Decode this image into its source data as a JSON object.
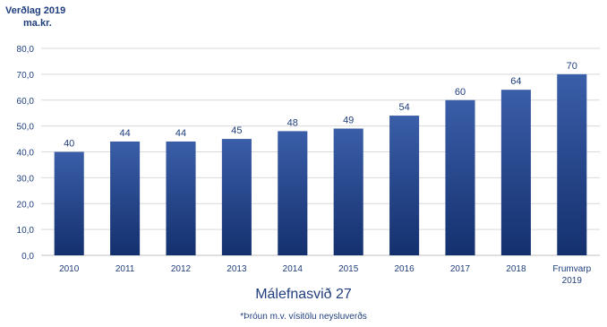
{
  "unit": {
    "line1": "Verðlag 2019",
    "line2": "ma.kr."
  },
  "footnote": "*Þróun m.v. vísitölu neysluverðs",
  "chart_data": {
    "type": "bar",
    "title": "Málefnasvið 27",
    "categories": [
      "2010",
      "2011",
      "2012",
      "2013",
      "2014",
      "2015",
      "2016",
      "2017",
      "2018",
      "Frumvarp 2019"
    ],
    "values": [
      40,
      44,
      44,
      45,
      48,
      49,
      54,
      60,
      64,
      70
    ],
    "data_labels": [
      "40",
      "44",
      "44",
      "45",
      "48",
      "49",
      "54",
      "60",
      "64",
      "70"
    ],
    "ylim": [
      0,
      80
    ],
    "yticks": [
      0,
      10,
      20,
      30,
      40,
      50,
      60,
      70,
      80
    ],
    "ytick_labels": [
      "0,0",
      "10,0",
      "20,0",
      "30,0",
      "40,0",
      "50,0",
      "60,0",
      "70,0",
      "80,0"
    ],
    "grid": true,
    "legend": "none",
    "colors": {
      "bar_top": "#3a5ea8",
      "bar_bottom": "#14306e",
      "text": "#1f3e7c",
      "grid": "#d9d9d9",
      "axis": "#bfbfbf"
    }
  }
}
